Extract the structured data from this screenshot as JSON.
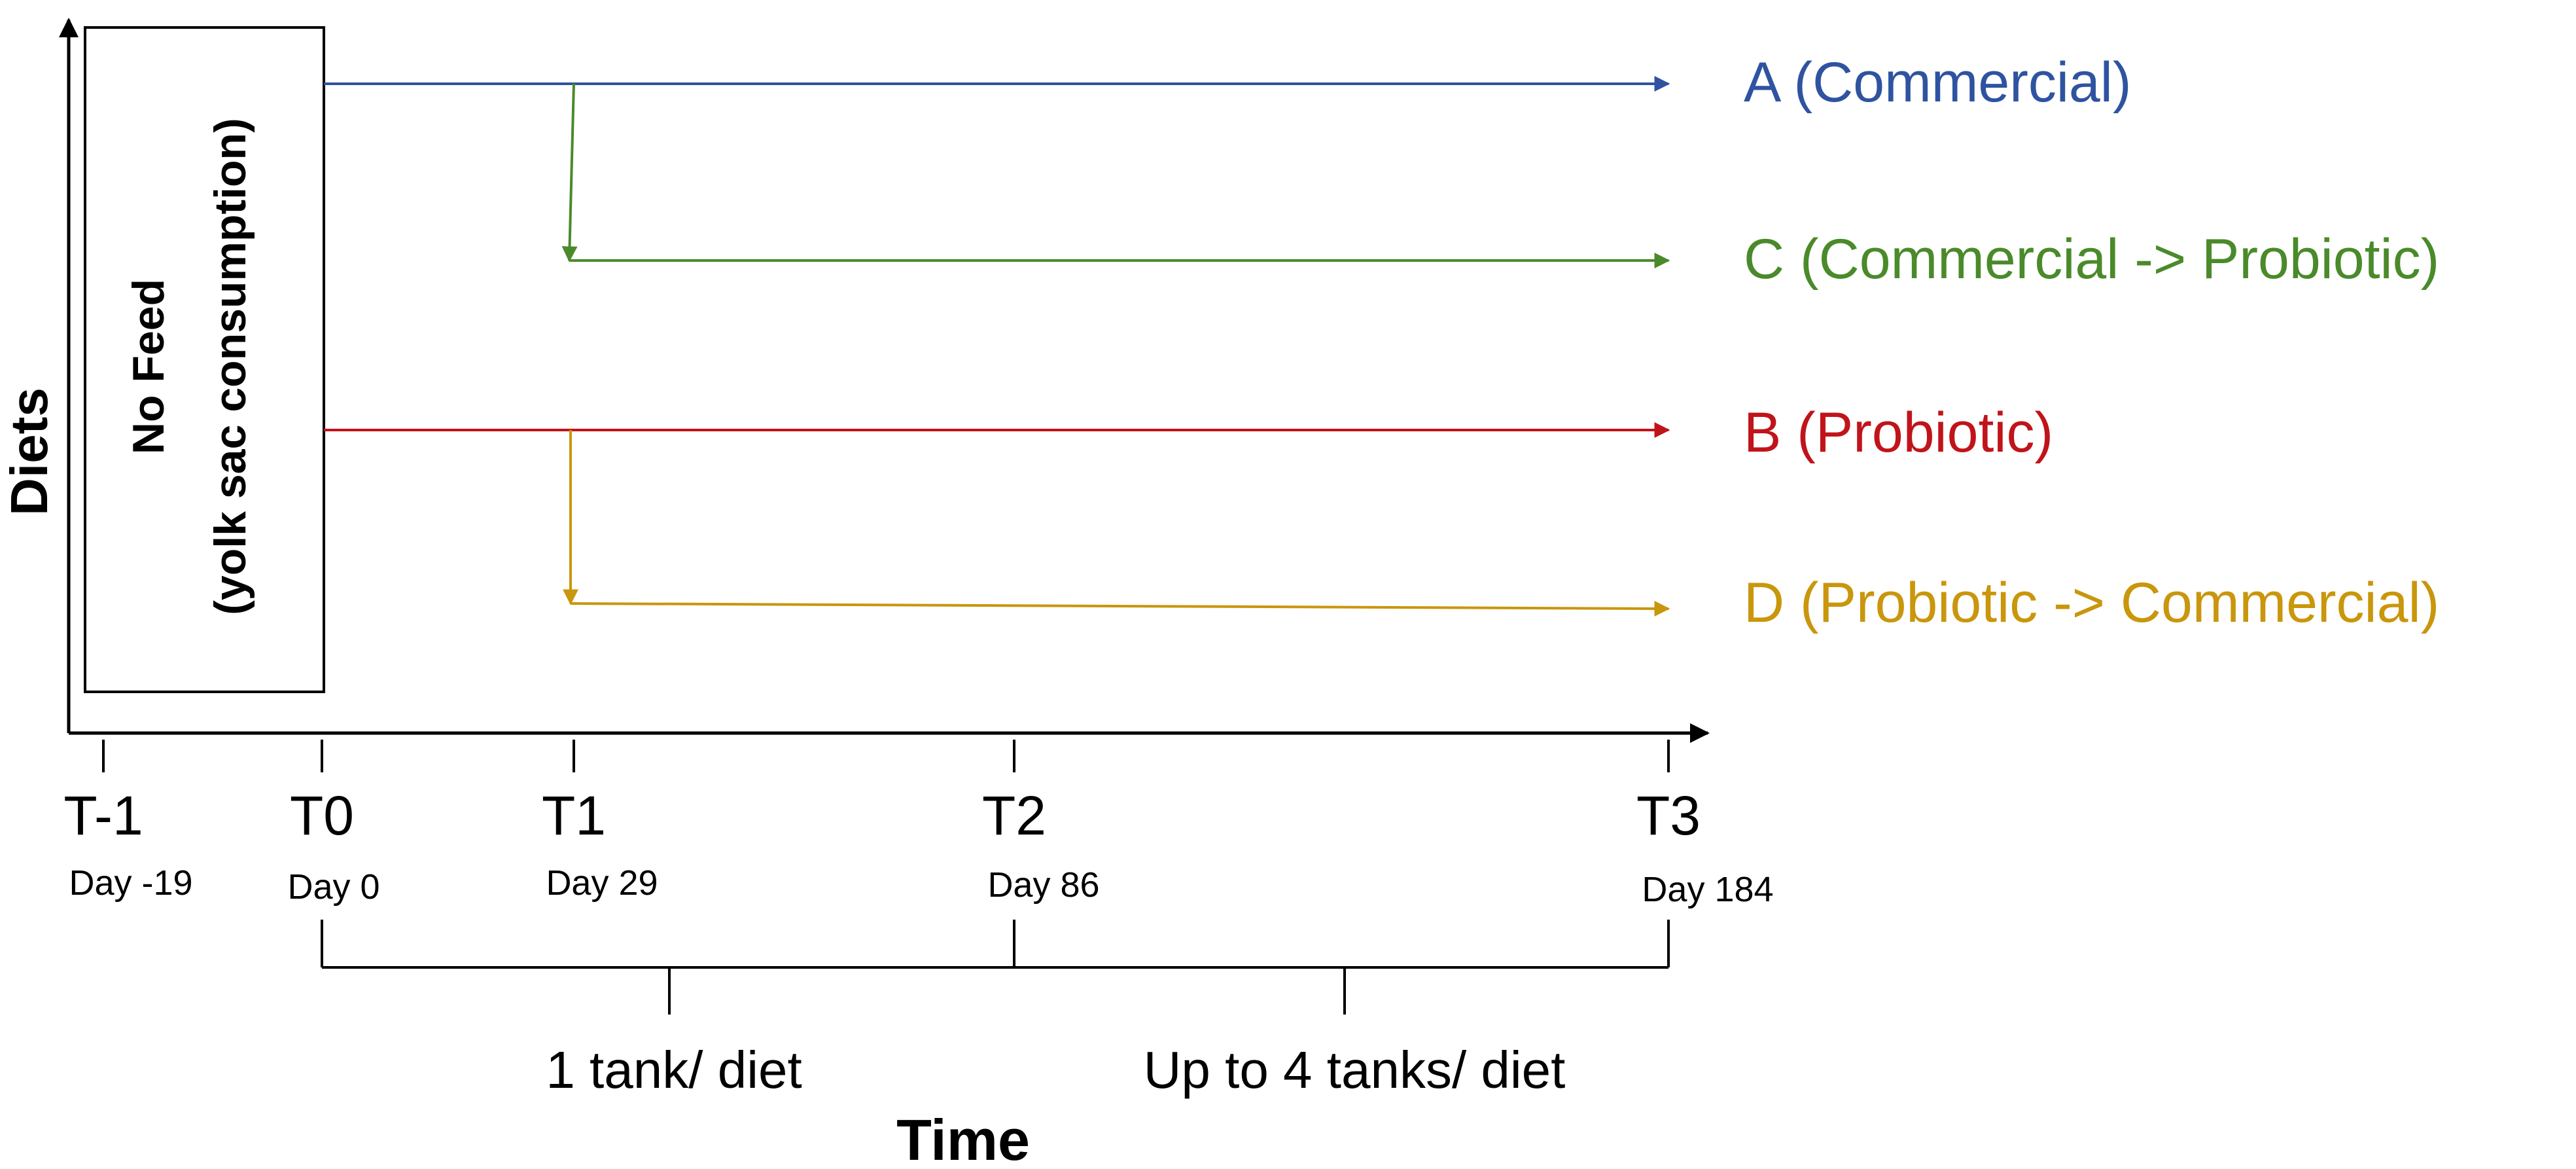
{
  "axes": {
    "y_label": "Diets",
    "x_label": "Time"
  },
  "no_feed_box": {
    "line1": "No Feed",
    "line2": "(yolk sac consumption)"
  },
  "timepoints": [
    {
      "label": "T-1",
      "day": "Day -19"
    },
    {
      "label": "T0",
      "day": "Day 0"
    },
    {
      "label": "T1",
      "day": "Day 29"
    },
    {
      "label": "T2",
      "day": "Day 86"
    },
    {
      "label": "T3",
      "day": "Day 184"
    }
  ],
  "diets": [
    {
      "label": "A (Commercial)",
      "color": "#2F53A0"
    },
    {
      "label": "C (Commercial -> Probiotic)",
      "color": "#4A8A2A"
    },
    {
      "label": "B (Probiotic)",
      "color": "#C0141A"
    },
    {
      "label": "D (Probiotic -> Commercial)",
      "color": "#C9960C"
    }
  ],
  "periods": [
    {
      "label": "1 tank/ diet"
    },
    {
      "label": "Up to 4 tanks/ diet"
    }
  ]
}
